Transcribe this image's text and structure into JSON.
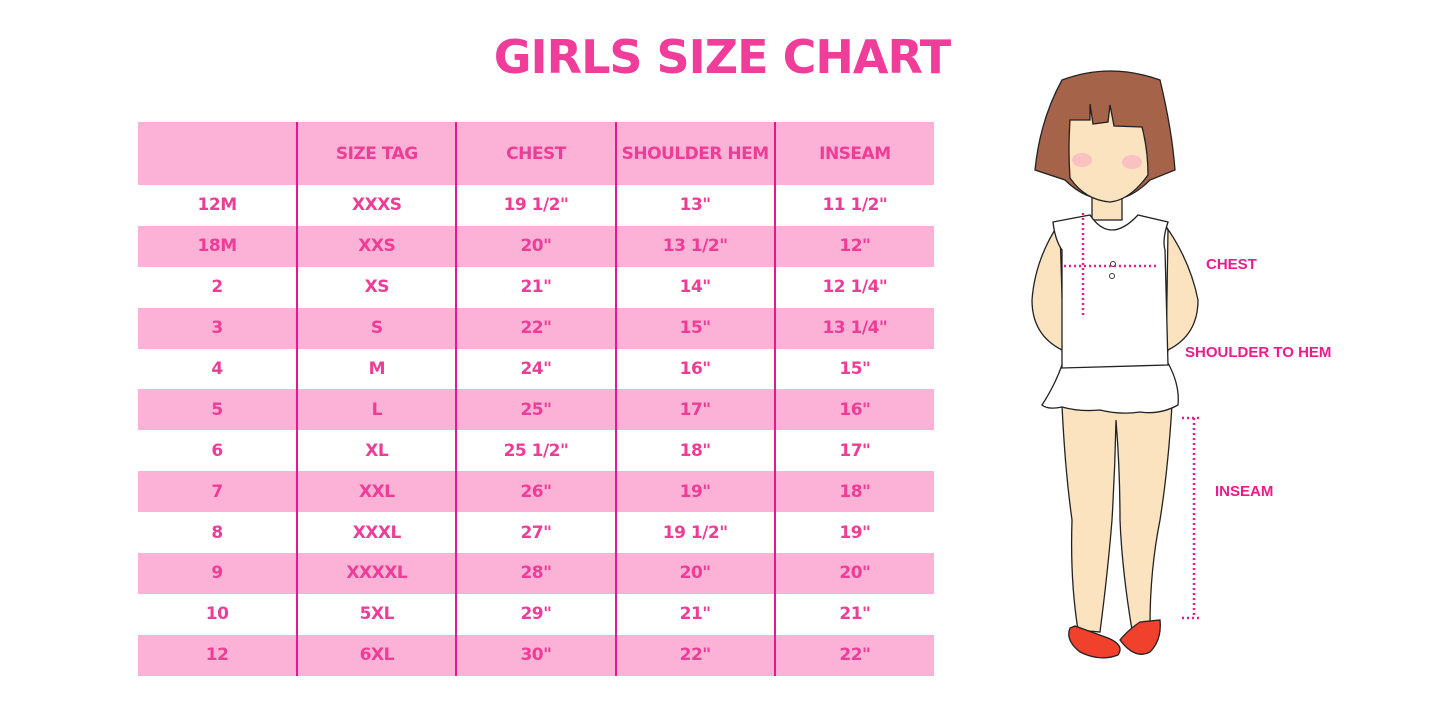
{
  "title": "GIRLS SIZE CHART",
  "table": {
    "headers": [
      "",
      "SIZE TAG",
      "CHEST",
      "SHOULDER HEM",
      "INSEAM"
    ],
    "rows": [
      [
        "12M",
        "XXXS",
        "19 1/2\"",
        "13\"",
        "11 1/2\""
      ],
      [
        "18M",
        "XXS",
        "20\"",
        "13 1/2\"",
        "12\""
      ],
      [
        "2",
        "XS",
        "21\"",
        "14\"",
        "12 1/4\""
      ],
      [
        "3",
        "S",
        "22\"",
        "15\"",
        "13 1/4\""
      ],
      [
        "4",
        "M",
        "24\"",
        "16\"",
        "15\""
      ],
      [
        "5",
        "L",
        "25\"",
        "17\"",
        "16\""
      ],
      [
        "6",
        "XL",
        "25 1/2\"",
        "18\"",
        "17\""
      ],
      [
        "7",
        "XXL",
        "26\"",
        "19\"",
        "18\""
      ],
      [
        "8",
        "XXXL",
        "27\"",
        "19 1/2\"",
        "19\""
      ],
      [
        "9",
        "XXXXL",
        "28\"",
        "20\"",
        "20\""
      ],
      [
        "10",
        "5XL",
        "29\"",
        "21\"",
        "21\""
      ],
      [
        "12",
        "6XL",
        "30\"",
        "22\"",
        "22\""
      ]
    ]
  },
  "figure": {
    "labels": {
      "chest": "CHEST",
      "shoulder": "SHOULDER TO HEM",
      "inseam": "INSEAM"
    }
  },
  "colors": {
    "accent": "#f03d9a",
    "row_pink": "#fcb1d7",
    "divider": "#e4188f",
    "hair": "#a5634a",
    "skin": "#fce3c0",
    "shoes": "#f0412c"
  }
}
